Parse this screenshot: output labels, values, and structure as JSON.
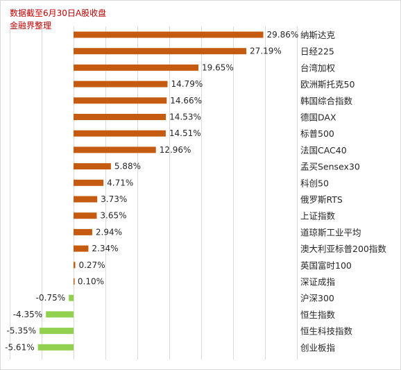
{
  "notes": {
    "line1": "数据截至6月30日A股收盘",
    "line2": "金融界整理"
  },
  "colors": {
    "positive": "#c55a11",
    "negative": "#92d050",
    "grid": "#d9d9d9",
    "note": "#c00000"
  },
  "chart_data": {
    "type": "bar",
    "orientation": "horizontal",
    "title": "",
    "xlabel": "",
    "ylabel": "",
    "xlim": [
      -6,
      30
    ],
    "grid": "vertical",
    "categories": [
      "纳斯达克",
      "日经225",
      "台湾加权",
      "欧洲斯托克50",
      "韩国综合指数",
      "德国DAX",
      "标普500",
      "法国CAC40",
      "孟买Sensex30",
      "科创50",
      "俄罗斯RTS",
      "上证指数",
      "道琼斯工业平均",
      "澳大利亚标普200指数",
      "英国富时100",
      "深证成指",
      "沪深300",
      "恒生指数",
      "恒生科技指数",
      "创业板指"
    ],
    "values": [
      29.86,
      27.19,
      19.65,
      14.79,
      14.66,
      14.53,
      14.51,
      12.96,
      5.88,
      4.71,
      3.73,
      3.65,
      2.94,
      2.34,
      0.27,
      0.1,
      -0.75,
      -4.35,
      -5.35,
      -5.61
    ],
    "value_labels": [
      "29.86%",
      "27.19%",
      "19.65%",
      "14.79%",
      "14.66%",
      "14.53%",
      "14.51%",
      "12.96%",
      "5.88%",
      "4.71%",
      "3.73%",
      "3.65%",
      "2.94%",
      "2.34%",
      "0.27%",
      "0.10%",
      "-0.75%",
      "-4.35%",
      "-5.35%",
      "-5.61%"
    ]
  }
}
